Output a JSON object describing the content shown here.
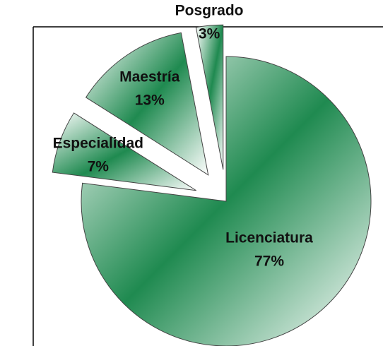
{
  "chart_data": {
    "type": "pie",
    "categories": [
      "Licenciatura",
      "Especialidad",
      "Maestría",
      "Posgrado"
    ],
    "values": [
      77,
      7,
      13,
      3
    ],
    "value_labels": [
      "77%",
      "7%",
      "13%",
      "3%"
    ],
    "color": "#1f8a50",
    "exploded": true
  }
}
